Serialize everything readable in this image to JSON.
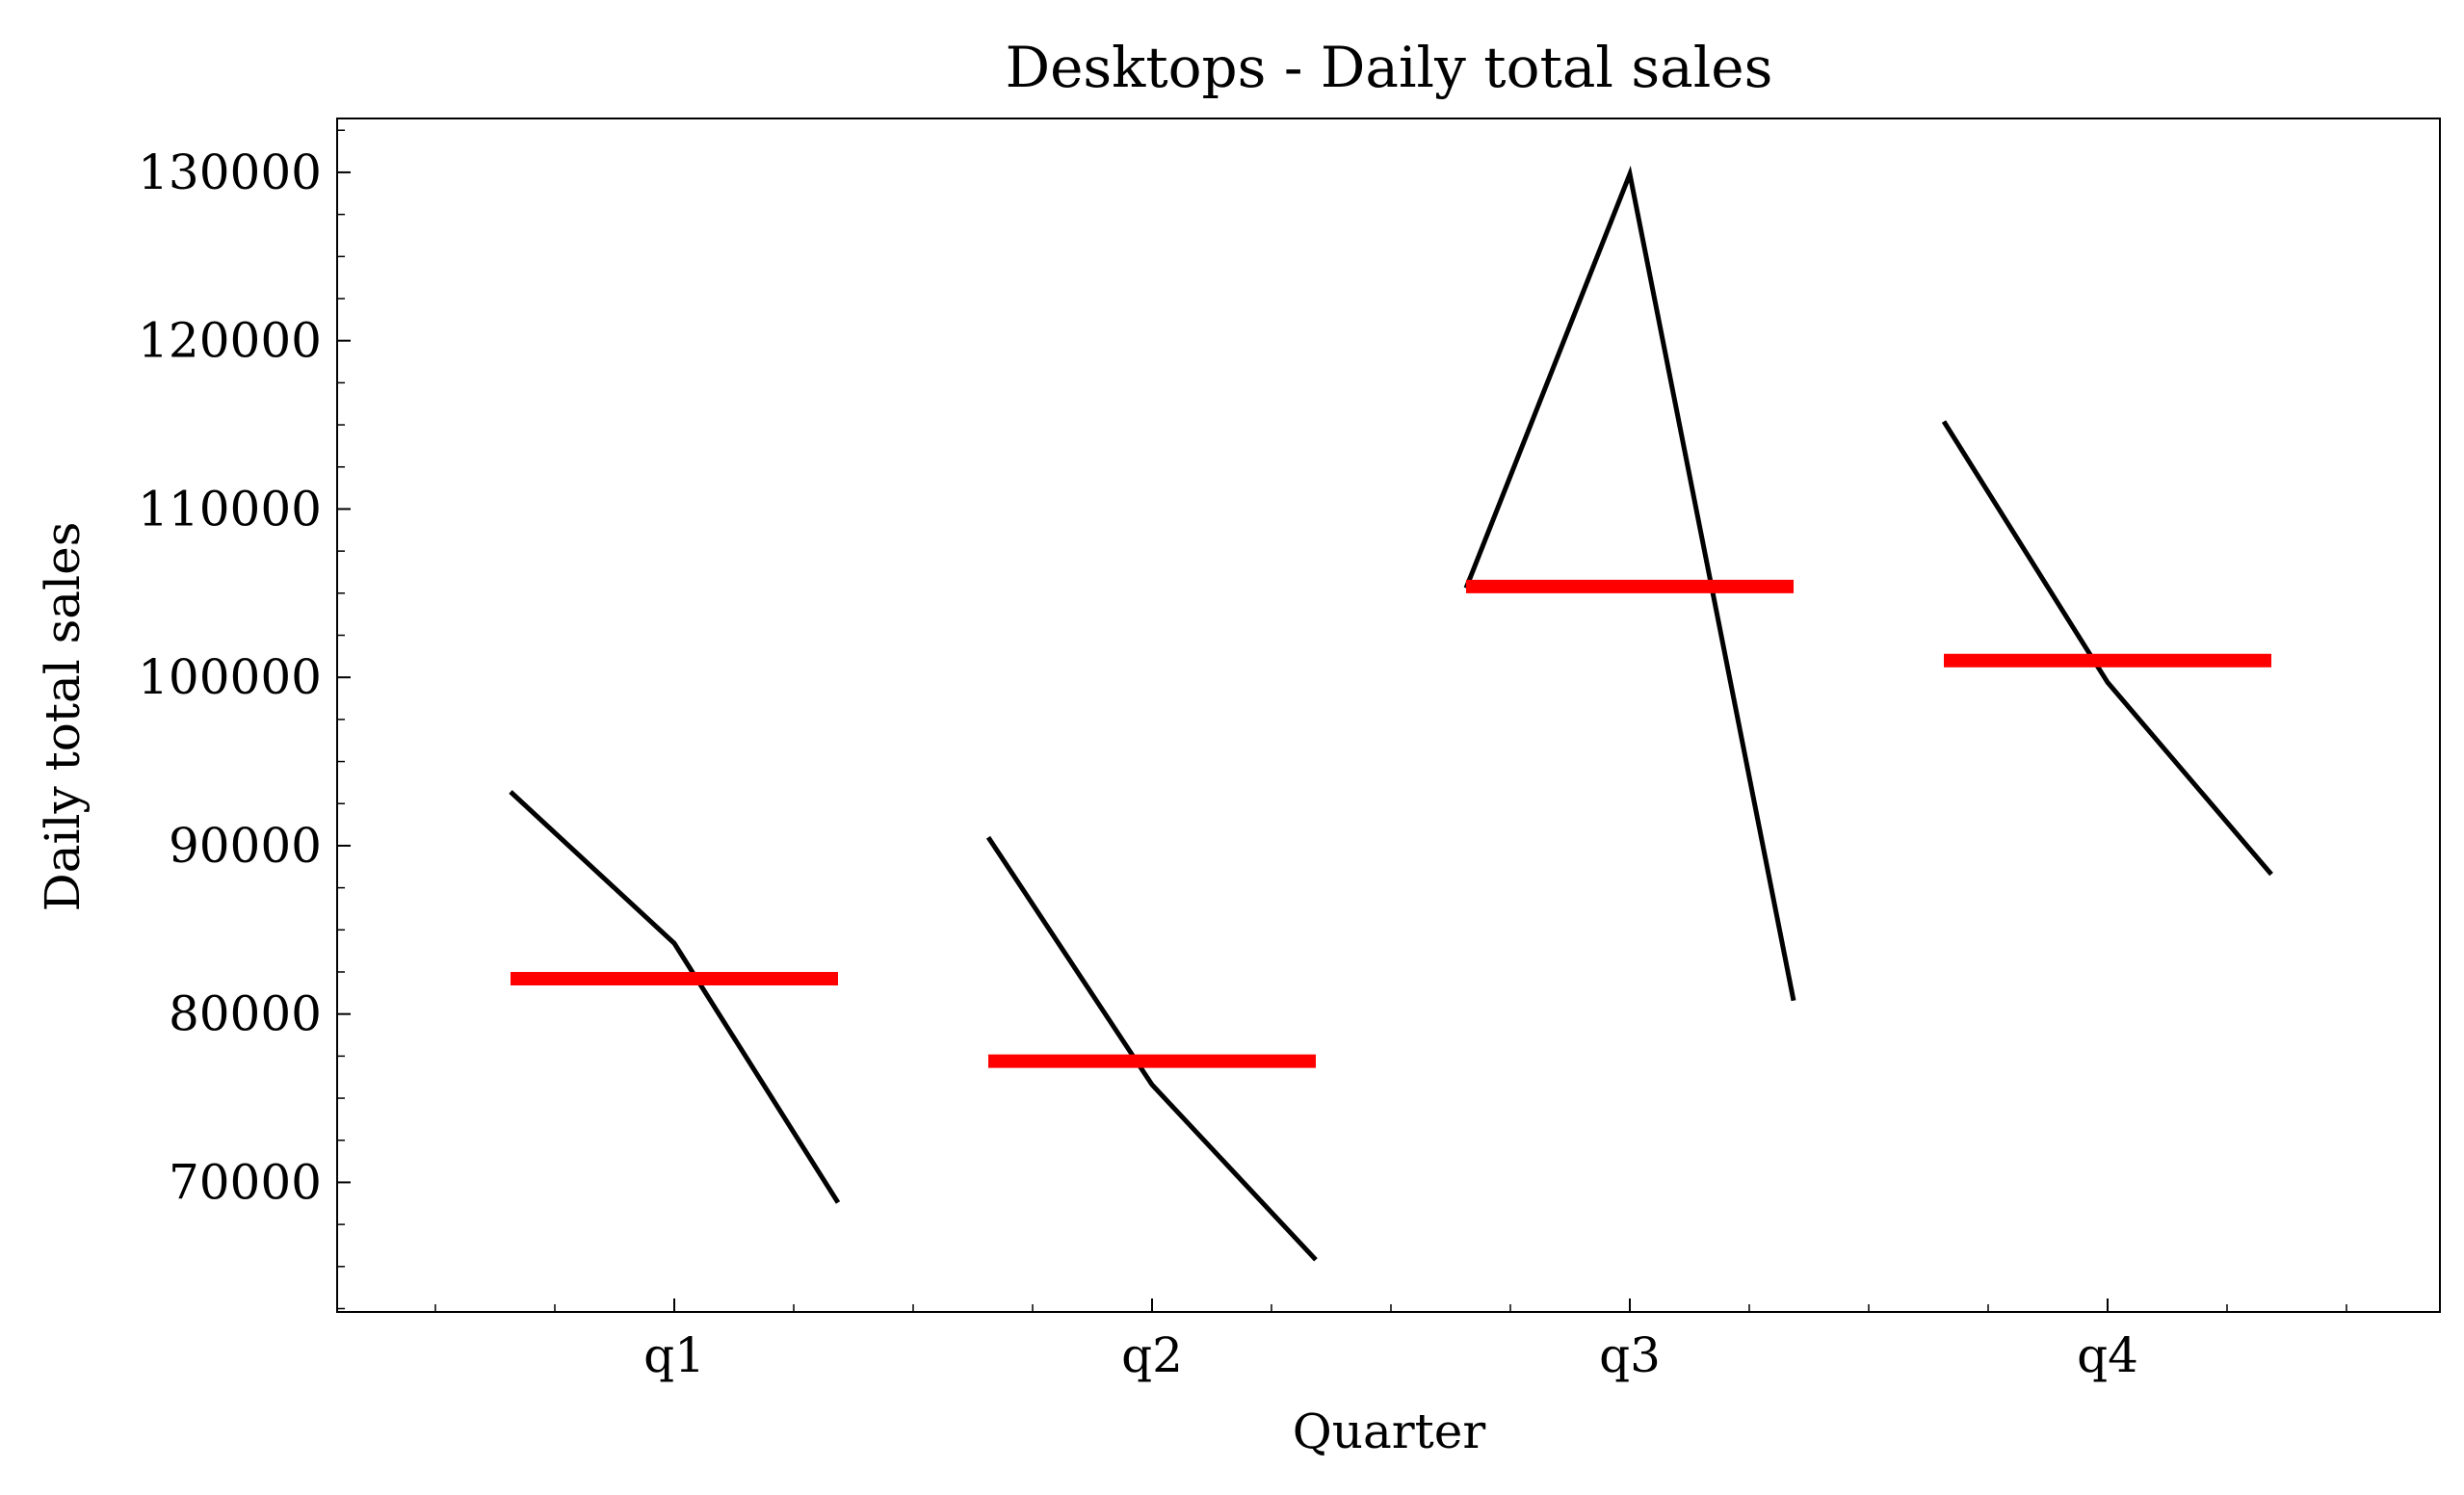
{
  "chart_data": {
    "type": "line",
    "title": "Desktops - Daily total sales",
    "xlabel": "Quarter",
    "ylabel": "Daily total sales",
    "categories": [
      "q1",
      "q2",
      "q3",
      "q4"
    ],
    "ylim": [
      62300,
      133200
    ],
    "yticks": [
      70000,
      80000,
      90000,
      100000,
      110000,
      120000,
      130000
    ],
    "ytick_labels": [
      "70000",
      "80000",
      "90000",
      "100000",
      "110000",
      "120000",
      "130000"
    ],
    "grid": false,
    "series": [
      {
        "values": [
          [
            93200,
            84200,
            68800
          ],
          [
            90500,
            75800,
            65400
          ],
          [
            105300,
            129900,
            80800
          ],
          [
            115200,
            99700,
            88300
          ]
        ]
      }
    ],
    "means": [
      82100,
      77200,
      105400,
      101000
    ],
    "colors": {
      "series_line": "#000000",
      "mean_line": "#ff0000",
      "axes": "#000000"
    }
  }
}
